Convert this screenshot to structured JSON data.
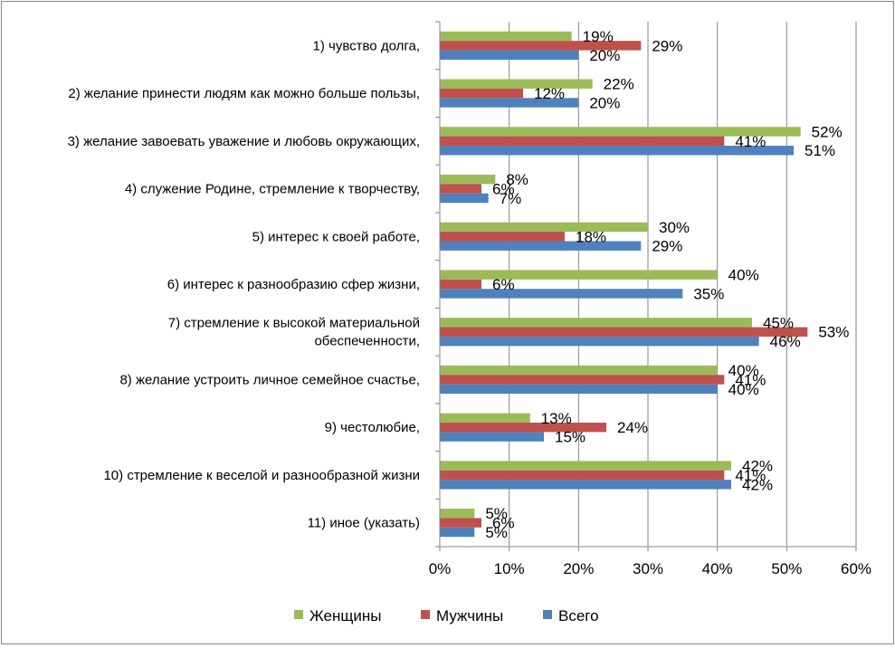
{
  "chart_data": {
    "type": "bar",
    "orientation": "horizontal",
    "categories": [
      [
        "1) чувство долга,"
      ],
      [
        "2) желание принести людям как можно больше пользы,"
      ],
      [
        "3) желание завоевать уважение и любовь окружающих,"
      ],
      [
        "4) служение Родине, стремление к творчеству,"
      ],
      [
        "5) интерес к своей работе,"
      ],
      [
        "6) интерес к разнообразию сфер жизни,"
      ],
      [
        "7) стремление к высокой материальной",
        "обеспеченности,"
      ],
      [
        "8) желание устроить личное семейное счастье,"
      ],
      [
        "9) честолюбие,"
      ],
      [
        "10) стремление к веселой и разнообразной жизни"
      ],
      [
        "11) иное (указать)"
      ]
    ],
    "series": [
      {
        "name": "Женщины",
        "color": "#9BBB59",
        "values": [
          19,
          22,
          52,
          8,
          30,
          40,
          45,
          40,
          13,
          42,
          5
        ]
      },
      {
        "name": "Мужчины",
        "color": "#C0504D",
        "values": [
          29,
          12,
          41,
          6,
          18,
          6,
          53,
          41,
          24,
          41,
          6
        ]
      },
      {
        "name": "Всего",
        "color": "#4F81BD",
        "values": [
          20,
          20,
          51,
          7,
          29,
          35,
          46,
          40,
          15,
          42,
          5
        ]
      }
    ],
    "xlim": [
      0,
      60
    ],
    "xticks": [
      0,
      10,
      20,
      30,
      40,
      50,
      60
    ],
    "tick_suffix": "%",
    "grid": "vertical",
    "legend_position": "bottom",
    "data_labels": true
  }
}
